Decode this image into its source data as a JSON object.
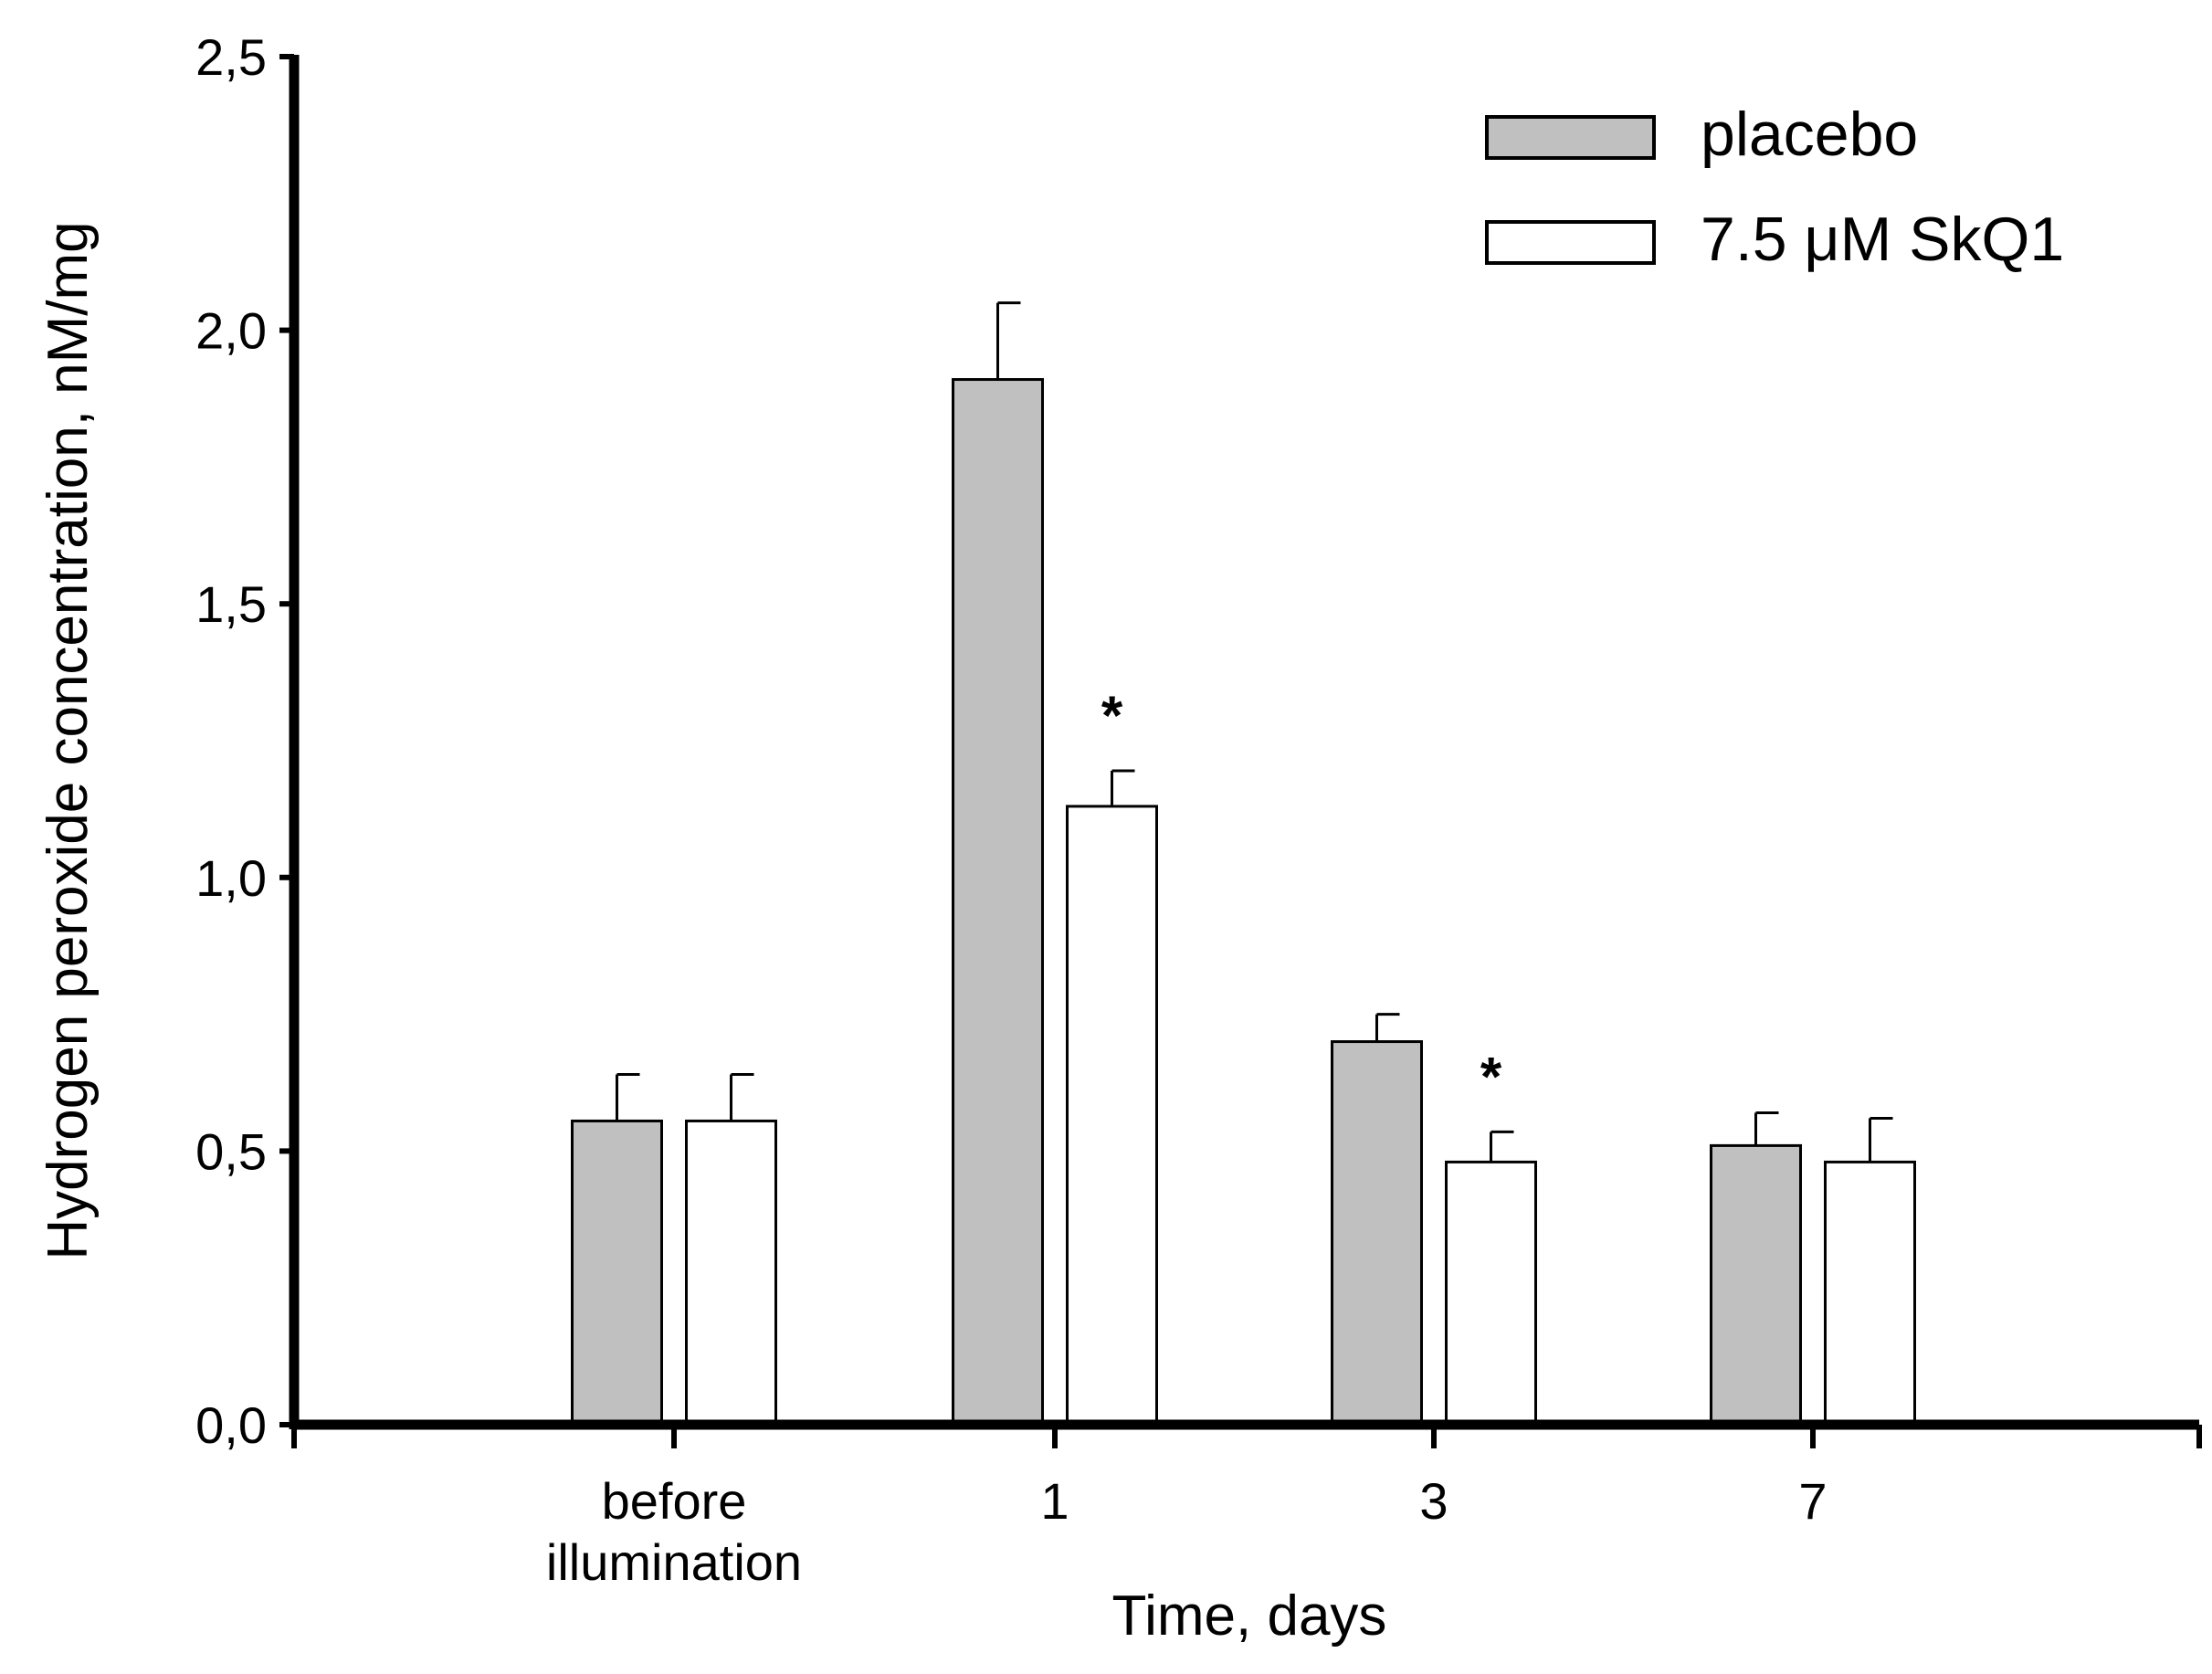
{
  "chart_data": {
    "type": "bar",
    "title": "",
    "xlabel": "Time, days",
    "ylabel": "Hydrogen peroxide concentration, nM/mg",
    "ylim": [
      0,
      2.5
    ],
    "yticks": [
      {
        "value": 0,
        "label": "0,0"
      },
      {
        "value": 0.5,
        "label": "0,5"
      },
      {
        "value": 1.0,
        "label": "1,0"
      },
      {
        "value": 1.5,
        "label": "1,5"
      },
      {
        "value": 2.0,
        "label": "2,0"
      },
      {
        "value": 2.5,
        "label": "2,5"
      }
    ],
    "categories": [
      {
        "label_lines": [
          "before",
          "illumination"
        ]
      },
      {
        "label_lines": [
          "1"
        ]
      },
      {
        "label_lines": [
          "3"
        ]
      },
      {
        "label_lines": [
          "7"
        ]
      }
    ],
    "series": [
      {
        "name": "placebo",
        "fill": "#c0c0c0",
        "values": [
          0.555,
          1.91,
          0.7,
          0.51
        ],
        "errors": [
          0.085,
          0.14,
          0.05,
          0.06
        ],
        "significance": [
          "",
          "",
          "",
          ""
        ]
      },
      {
        "name": "7.5 μM SkQ1",
        "fill": "#ffffff",
        "values": [
          0.555,
          1.13,
          0.48,
          0.48
        ],
        "errors": [
          0.085,
          0.065,
          0.055,
          0.08
        ],
        "significance": [
          "",
          "*",
          "*",
          ""
        ]
      }
    ],
    "legend": {
      "position": "top-right"
    },
    "grid": false
  },
  "colors": {
    "axis": "#000000",
    "bar_outline": "#000000",
    "background": "#ffffff"
  }
}
